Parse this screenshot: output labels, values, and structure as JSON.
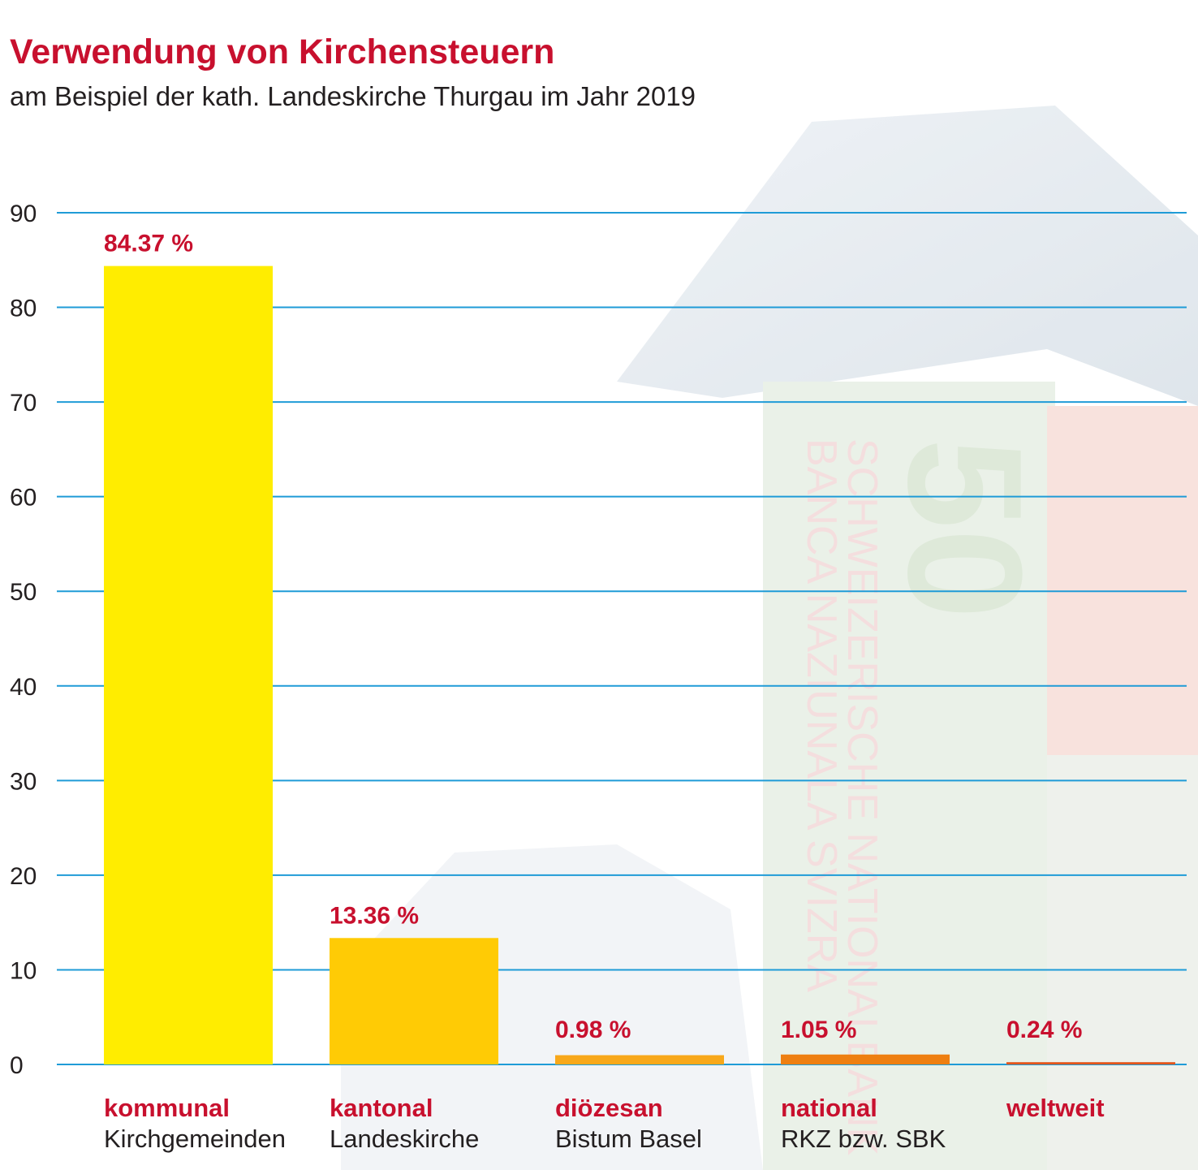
{
  "title": "Verwendung von Kirchensteuern",
  "subtitle": "am Beispiel der kath. Landeskirche Thurgau im Jahr 2019",
  "colors": {
    "title": "#c8102e",
    "gridline": "#1f9bd7",
    "label": "#c8102e"
  },
  "chart_data": {
    "type": "bar",
    "title": "Verwendung von Kirchensteuern",
    "subtitle": "am Beispiel der kath. Landeskirche Thurgau im Jahr 2019",
    "xlabel": "",
    "ylabel": "",
    "ylim": [
      0,
      90
    ],
    "yticks": [
      "0",
      "10",
      "20",
      "30",
      "40",
      "50",
      "60",
      "70",
      "80",
      "90"
    ],
    "grid": true,
    "categories": [
      {
        "name": "kommunal",
        "detail": "Kirchgemeinden",
        "value": 84.37,
        "label": "84.37 %",
        "color": "#ffed00"
      },
      {
        "name": "kantonal",
        "detail": "Landeskirche",
        "value": 13.36,
        "label": "13.36 %",
        "color": "#ffcb05"
      },
      {
        "name": "diözesan",
        "detail": "Bistum Basel",
        "value": 0.98,
        "label": "0.98 %",
        "color": "#f8a81b"
      },
      {
        "name": "national",
        "detail": "RKZ bzw. SBK",
        "value": 1.05,
        "label": "1.05 %",
        "color": "#ee7f11"
      },
      {
        "name": "weltweit",
        "detail": "",
        "value": 0.24,
        "label": "0.24 %",
        "color": "#e2561c"
      }
    ]
  }
}
